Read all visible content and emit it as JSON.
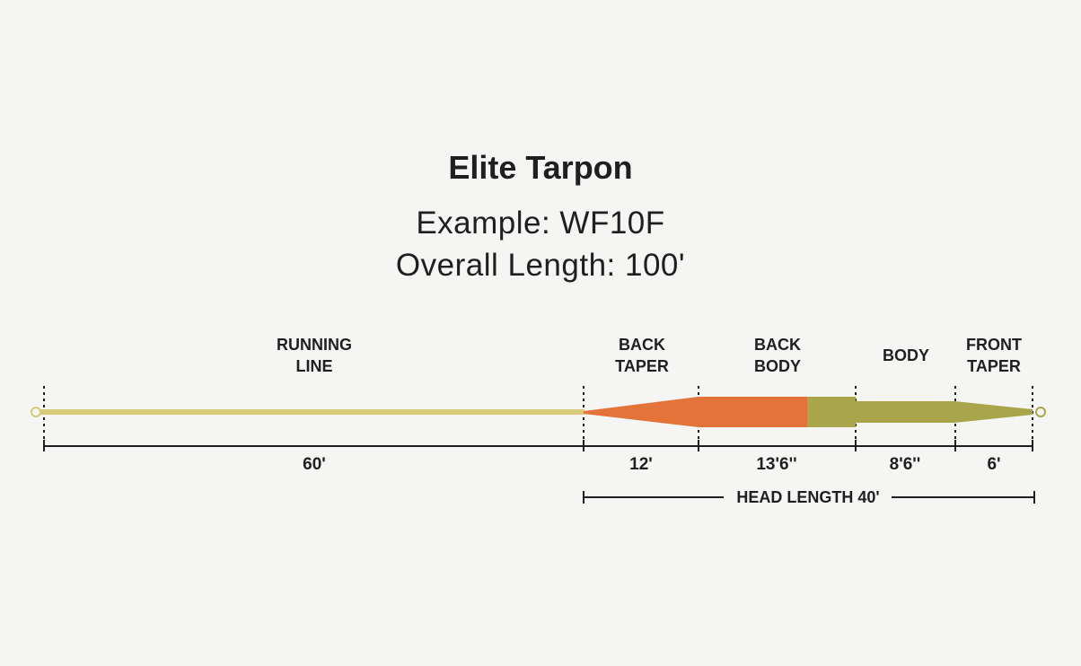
{
  "title": "Elite Tarpon",
  "example": "Example: WF10F",
  "overall_length": "Overall Length: 100'",
  "segments": [
    {
      "name_line1": "RUNNING",
      "name_line2": "LINE",
      "length": "60'"
    },
    {
      "name_line1": "BACK",
      "name_line2": "TAPER",
      "length": "12'"
    },
    {
      "name_line1": "BACK",
      "name_line2": "BODY",
      "length": "13'6''"
    },
    {
      "name_line1": "BODY",
      "name_line2": "",
      "length": "8'6''"
    },
    {
      "name_line1": "FRONT",
      "name_line2": "TAPER",
      "length": "6'"
    }
  ],
  "head_length": "HEAD LENGTH 40'",
  "colors": {
    "running_line": "#d7cb79",
    "back_taper": "#e4733a",
    "back_body": "#e4733a",
    "body": "#a8a54a",
    "front_taper": "#a8a54a",
    "text": "#1f1f1f",
    "background": "#f5f5f3"
  }
}
